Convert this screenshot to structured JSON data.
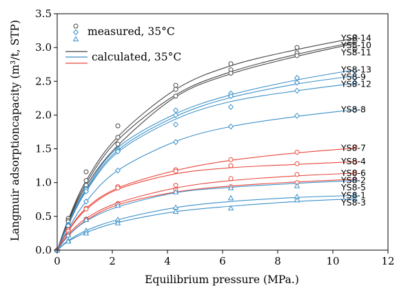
{
  "chart_data": {
    "type": "line",
    "xlabel": "Equilibrium pressure (MPa.)",
    "ylabel": "Langmuir adsorptioncapacity (m³/t, STP)",
    "xlim": [
      0,
      12
    ],
    "ylim": [
      0,
      3.5
    ],
    "xticks": [
      "0",
      "2",
      "4",
      "6",
      "8",
      "10",
      "12"
    ],
    "yticks": [
      "0.0",
      "0.5",
      "1.0",
      "1.5",
      "2.0",
      "2.5",
      "3.0",
      "3.5"
    ],
    "legend": {
      "placement": "top-left",
      "entries": [
        {
          "label": "measured, 35°C",
          "marker": "circle",
          "color": "#444444"
        },
        {
          "label": "",
          "marker": "diamond",
          "color": "#3a8fc8"
        },
        {
          "label": "",
          "marker": "triangle",
          "color": "#3a8fc8"
        },
        {
          "label": "calculated, 35°C",
          "line": true,
          "color": "#444444"
        },
        {
          "label": "",
          "line": true,
          "color": "#3a8fc8"
        },
        {
          "label": "",
          "line": true,
          "color": "#e8463a"
        }
      ]
    },
    "pressures": [
      0,
      0.4,
      1.05,
      2.2,
      4.3,
      6.3,
      8.7,
      10.8
    ],
    "series": [
      {
        "name": "YS8-14",
        "color": "#444444",
        "marker": "circle",
        "measured": [
          0,
          0.47,
          1.16,
          1.84,
          2.44,
          2.76,
          3.0,
          3.16
        ],
        "calculated": [
          0,
          0.45,
          1.03,
          1.68,
          2.38,
          2.73,
          2.97,
          3.14
        ]
      },
      {
        "name": "YS8-10",
        "color": "#444444",
        "marker": "circle",
        "measured": [
          0,
          0.44,
          1.03,
          1.67,
          2.38,
          2.67,
          2.92,
          3.1
        ],
        "calculated": [
          0,
          0.43,
          0.99,
          1.63,
          2.3,
          2.64,
          2.9,
          3.08
        ]
      },
      {
        "name": "YS8-11",
        "color": "#444444",
        "marker": "circle",
        "measured": [
          0,
          0.42,
          0.96,
          1.57,
          2.28,
          2.62,
          2.88,
          2.98
        ],
        "calculated": [
          0,
          0.41,
          0.95,
          1.55,
          2.27,
          2.61,
          2.87,
          3.06
        ]
      },
      {
        "name": "YS8-13",
        "color": "#3a8fc8",
        "marker": "diamond",
        "measured": [
          0,
          0.38,
          0.91,
          1.5,
          2.07,
          2.32,
          2.55,
          2.65
        ],
        "calculated": [
          0,
          0.39,
          0.91,
          1.52,
          2.02,
          2.3,
          2.52,
          2.67
        ]
      },
      {
        "name": "YS8-9",
        "color": "#3a8fc8",
        "marker": "diamond",
        "measured": [
          0,
          0.37,
          0.9,
          1.48,
          2.0,
          2.28,
          2.48,
          2.55
        ],
        "calculated": [
          0,
          0.38,
          0.89,
          1.48,
          1.98,
          2.26,
          2.46,
          2.58
        ]
      },
      {
        "name": "YS8-12",
        "color": "#3a8fc8",
        "marker": "diamond",
        "measured": [
          0,
          0.36,
          0.87,
          1.46,
          1.86,
          2.12,
          2.36,
          2.48
        ],
        "calculated": [
          0,
          0.37,
          0.87,
          1.45,
          1.94,
          2.2,
          2.36,
          2.47
        ]
      },
      {
        "name": "YS8-8",
        "color": "#3a8fc8",
        "marker": "diamond",
        "measured": [
          0,
          0.3,
          0.72,
          1.18,
          1.6,
          1.83,
          1.99,
          2.07
        ],
        "calculated": [
          0,
          0.31,
          0.72,
          1.18,
          1.61,
          1.83,
          1.98,
          2.08
        ]
      },
      {
        "name": "YS8-7",
        "color": "#e8463a",
        "marker": "circle",
        "measured": [
          0,
          0.3,
          0.62,
          0.94,
          1.19,
          1.34,
          1.45,
          1.53
        ],
        "calculated": [
          0,
          0.29,
          0.62,
          0.92,
          1.18,
          1.33,
          1.44,
          1.51
        ]
      },
      {
        "name": "YS8-4",
        "color": "#e8463a",
        "marker": "circle",
        "measured": [
          0,
          0.28,
          0.61,
          0.92,
          1.17,
          1.25,
          1.28,
          1.3
        ],
        "calculated": [
          0,
          0.28,
          0.6,
          0.9,
          1.13,
          1.22,
          1.27,
          1.31
        ]
      },
      {
        "name": "YS8-6",
        "color": "#e8463a",
        "marker": "circle",
        "measured": [
          0,
          0.24,
          0.46,
          0.69,
          0.96,
          1.06,
          1.12,
          1.15
        ],
        "calculated": [
          0,
          0.23,
          0.47,
          0.7,
          0.92,
          1.03,
          1.1,
          1.14
        ]
      },
      {
        "name": "YS8-2",
        "color": "#e8463a",
        "marker": "circle",
        "measured": [
          0,
          0.22,
          0.45,
          0.68,
          0.89,
          0.94,
          1.0,
          1.05
        ],
        "calculated": [
          0,
          0.21,
          0.44,
          0.67,
          0.86,
          0.95,
          1.01,
          1.05
        ]
      },
      {
        "name": "YS8-5",
        "color": "#3a8fc8",
        "marker": "triangle",
        "measured": [
          0,
          0.22,
          0.45,
          0.66,
          0.86,
          0.92,
          0.95,
          1.05
        ],
        "calculated": [
          0,
          0.21,
          0.43,
          0.64,
          0.85,
          0.93,
          0.99,
          1.03
        ]
      },
      {
        "name": "YS8-1",
        "color": "#3a8fc8",
        "marker": "triangle",
        "measured": [
          0,
          0.14,
          0.29,
          0.45,
          0.63,
          0.77,
          0.79,
          0.82
        ],
        "calculated": [
          0,
          0.14,
          0.29,
          0.45,
          0.63,
          0.72,
          0.78,
          0.81
        ]
      },
      {
        "name": "YS8-3",
        "color": "#3a8fc8",
        "marker": "triangle",
        "measured": [
          0,
          0.13,
          0.25,
          0.4,
          0.57,
          0.62,
          0.74,
          0.76
        ],
        "calculated": [
          0,
          0.13,
          0.26,
          0.41,
          0.57,
          0.65,
          0.72,
          0.76
        ]
      }
    ]
  }
}
